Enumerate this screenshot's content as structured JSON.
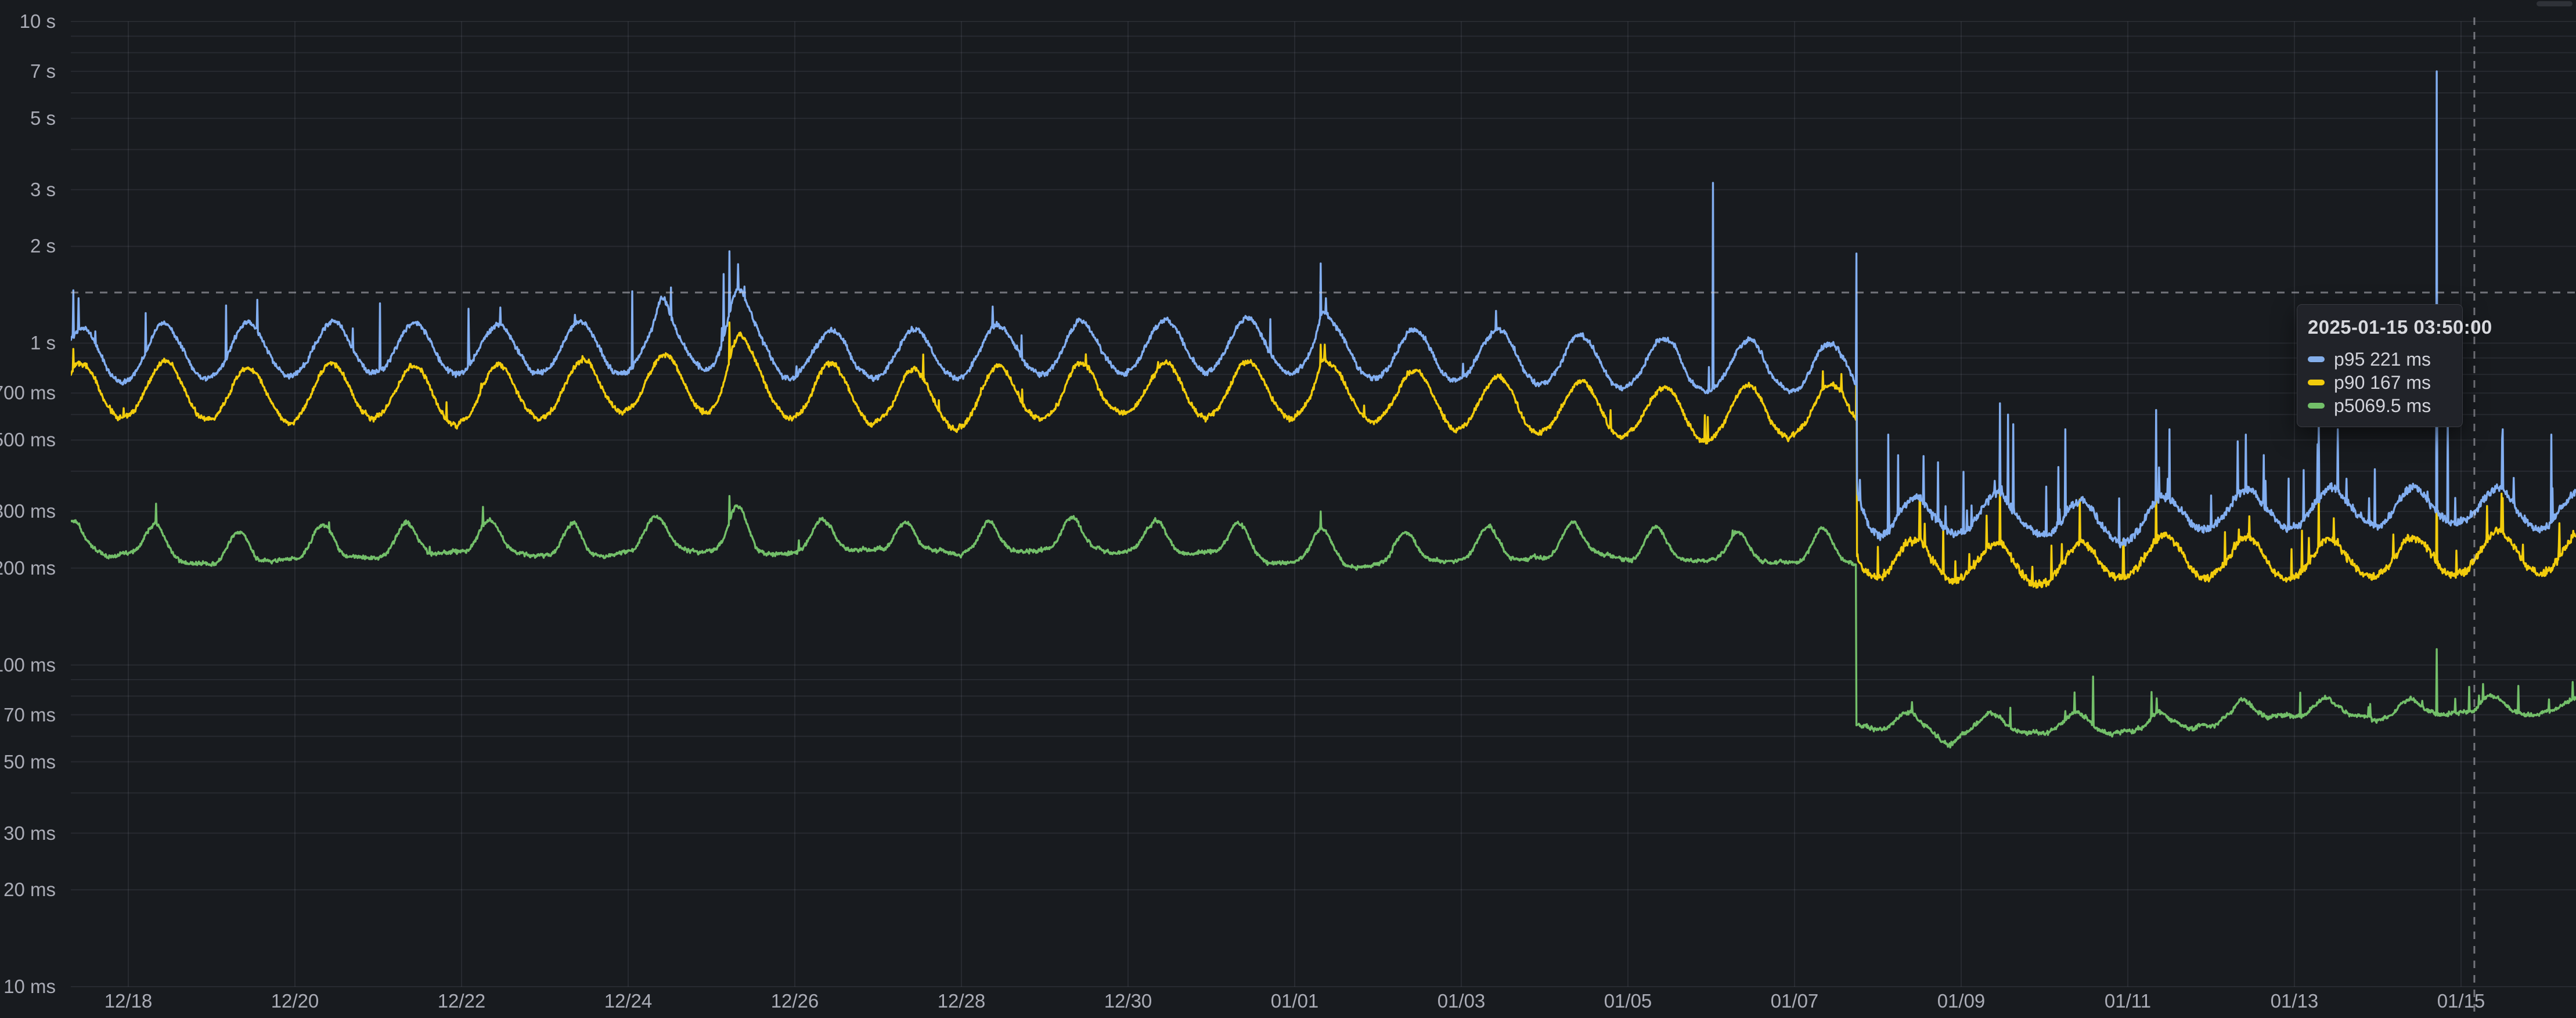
{
  "page": {
    "background": "#181b1f",
    "grid_color": "rgba(204,204,220,0.09)",
    "axis_text_color": "rgba(208,209,220,0.80)"
  },
  "tooltip": {
    "title": "2025-01-15 03:50:00",
    "rows": [
      {
        "label": "p95",
        "value": "221 ms",
        "color": "#84AEEA"
      },
      {
        "label": "p90",
        "value": "167 ms",
        "color": "#F2CC0C"
      },
      {
        "label": "p50",
        "value": "69.5 ms",
        "color": "#73BF69"
      }
    ]
  },
  "chart_data": {
    "type": "line",
    "title": "",
    "xlabel": "",
    "ylabel": "",
    "y_unit": "ms",
    "y_scale": "log10",
    "y_range_ms": [
      10,
      10000
    ],
    "grid": true,
    "legend_position": "tooltip-only",
    "x_start": "2024-12-17T07:00:00Z",
    "x_end": "2025-01-16T09:00:00Z",
    "sample_minutes": 10,
    "change_point": "2025-01-07T17:45:00Z",
    "crosshair": {
      "time": "2025-01-15T03:50:00Z",
      "value_ms": 1437
    },
    "y_ticks": [
      {
        "ms": 10000,
        "label": "10 s"
      },
      {
        "ms": 7000,
        "label": "7 s"
      },
      {
        "ms": 5000,
        "label": "5 s"
      },
      {
        "ms": 3000,
        "label": "3 s"
      },
      {
        "ms": 2000,
        "label": "2 s"
      },
      {
        "ms": 1000,
        "label": "1 s"
      },
      {
        "ms": 700,
        "label": "700 ms"
      },
      {
        "ms": 500,
        "label": "500 ms"
      },
      {
        "ms": 300,
        "label": "300 ms"
      },
      {
        "ms": 200,
        "label": "200 ms"
      },
      {
        "ms": 100,
        "label": "100 ms"
      },
      {
        "ms": 70,
        "label": "70 ms"
      },
      {
        "ms": 50,
        "label": "50 ms"
      },
      {
        "ms": 30,
        "label": "30 ms"
      },
      {
        "ms": 20,
        "label": "20 ms"
      },
      {
        "ms": 10,
        "label": "10 ms"
      }
    ],
    "x_ticks": [
      {
        "label": "12/18",
        "date": "2024-12-18"
      },
      {
        "label": "12/20",
        "date": "2024-12-20"
      },
      {
        "label": "12/22",
        "date": "2024-12-22"
      },
      {
        "label": "12/24",
        "date": "2024-12-24"
      },
      {
        "label": "12/26",
        "date": "2024-12-26"
      },
      {
        "label": "12/28",
        "date": "2024-12-28"
      },
      {
        "label": "12/30",
        "date": "2024-12-30"
      },
      {
        "label": "01/01",
        "date": "2025-01-01"
      },
      {
        "label": "01/03",
        "date": "2025-01-03"
      },
      {
        "label": "01/05",
        "date": "2025-01-05"
      },
      {
        "label": "01/07",
        "date": "2025-01-07"
      },
      {
        "label": "01/09",
        "date": "2025-01-09"
      },
      {
        "label": "01/11",
        "date": "2025-01-11"
      },
      {
        "label": "01/13",
        "date": "2025-01-13"
      },
      {
        "label": "01/15",
        "date": "2025-01-15"
      }
    ],
    "series": [
      {
        "name": "p95",
        "color": "#82AEF0",
        "seed": 101,
        "daily_base_pre_ms": [
          905,
          895,
          890,
          900,
          905,
          900,
          915,
          940,
          930,
          900,
          885,
          880,
          890,
          900,
          900,
          885,
          865,
          860,
          850,
          835,
          820,
          830
        ],
        "daily_base_post_ms": [
          292,
          298,
          294,
          299,
          305,
          300,
          306,
          312,
          312
        ],
        "daily_pre": {
          "trough": 0.845,
          "peak": 1.245,
          "peak_hour": 10.5,
          "sigma_h": 4.5
        },
        "daily_post": {
          "trough": 0.86,
          "peak": 1.17,
          "peak_hour": 10.5,
          "sigma_h": 4.5
        },
        "noise_pre": {
          "jitter": 0.022,
          "spike_prob": 0.008,
          "spike_mag": 0.3
        },
        "noise_post": {
          "jitter": 0.035,
          "spike_prob": 0.03,
          "spike_mag": 0.55
        },
        "settle": {
          "amp": 0.38,
          "tau_h": 3
        },
        "surges": [
          {
            "time": "2024-12-25T07:00:00Z",
            "sigma_h": 2.5,
            "factor": 1.35
          },
          {
            "time": "2024-12-24T10:00:00Z",
            "sigma_h": 1.5,
            "factor": 1.15
          },
          {
            "time": "2025-01-01T08:00:00Z",
            "sigma_h": 1.2,
            "factor": 1.12
          }
        ],
        "spikes": [
          {
            "time": "2024-12-17T08:10:00Z",
            "value_ms": 1460
          },
          {
            "time": "2024-12-17T09:40:00Z",
            "value_ms": 1380
          },
          {
            "time": "2024-12-18T05:00:00Z",
            "value_ms": 1240
          },
          {
            "time": "2024-12-19T04:10:00Z",
            "value_ms": 1310
          },
          {
            "time": "2024-12-21T00:30:00Z",
            "value_ms": 1330
          },
          {
            "time": "2024-12-22T02:00:00Z",
            "value_ms": 1280
          },
          {
            "time": "2024-12-24T01:10:00Z",
            "value_ms": 1450
          },
          {
            "time": "2024-12-25T03:30:00Z",
            "value_ms": 1640
          },
          {
            "time": "2024-12-25T05:10:00Z",
            "value_ms": 1930
          },
          {
            "time": "2024-12-25T07:40:00Z",
            "value_ms": 1760
          },
          {
            "time": "2024-12-25T09:30:00Z",
            "value_ms": 1500
          },
          {
            "time": "2024-12-28T09:00:00Z",
            "value_ms": 1300
          },
          {
            "time": "2025-01-01T07:30:00Z",
            "value_ms": 1770
          },
          {
            "time": "2025-01-01T09:00:00Z",
            "value_ms": 1380
          },
          {
            "time": "2025-01-03T10:00:00Z",
            "value_ms": 1260
          },
          {
            "time": "2025-01-06T00:30:00Z",
            "value_ms": 3150
          },
          {
            "time": "2025-01-07T17:45:00Z",
            "value_ms": 1900
          },
          {
            "time": "2025-01-08T03:00:00Z",
            "value_ms": 520
          },
          {
            "time": "2025-01-09T11:10:00Z",
            "value_ms": 650
          },
          {
            "time": "2025-01-09T13:30:00Z",
            "value_ms": 600
          },
          {
            "time": "2025-01-09T15:00:00Z",
            "value_ms": 560
          },
          {
            "time": "2025-01-10T06:00:00Z",
            "value_ms": 540
          },
          {
            "time": "2025-01-11T08:10:00Z",
            "value_ms": 620
          },
          {
            "time": "2025-01-11T12:00:00Z",
            "value_ms": 540
          },
          {
            "time": "2025-01-12T10:00:00Z",
            "value_ms": 520
          },
          {
            "time": "2025-01-13T07:00:00Z",
            "value_ms": 590
          },
          {
            "time": "2025-01-13T12:30:00Z",
            "value_ms": 540
          },
          {
            "time": "2025-01-14T17:00:00Z",
            "value_ms": 7000
          },
          {
            "time": "2025-01-14T20:10:00Z",
            "value_ms": 620
          },
          {
            "time": "2025-01-15T12:00:00Z",
            "value_ms": 540
          },
          {
            "time": "2025-01-16T02:00:00Z",
            "value_ms": 520
          }
        ]
      },
      {
        "name": "p90",
        "color": "#F2CC0C",
        "seed": 202,
        "daily_base_pre_ms": [
          700,
          690,
          685,
          695,
          705,
          700,
          715,
          745,
          735,
          700,
          685,
          680,
          690,
          700,
          700,
          680,
          655,
          645,
          635,
          615,
          600,
          615
        ],
        "daily_base_post_ms": [
          207,
          210,
          206,
          210,
          216,
          212,
          216,
          221,
          221
        ],
        "daily_pre": {
          "trough": 0.825,
          "peak": 1.25,
          "peak_hour": 10.5,
          "sigma_h": 4.5
        },
        "daily_post": {
          "trough": 0.86,
          "peak": 1.17,
          "peak_hour": 10.5,
          "sigma_h": 4.5
        },
        "noise_pre": {
          "jitter": 0.022,
          "spike_prob": 0.008,
          "spike_mag": 0.25
        },
        "noise_post": {
          "jitter": 0.035,
          "spike_prob": 0.028,
          "spike_mag": 0.4
        },
        "settle": {
          "amp": 0.13,
          "tau_h": 3
        },
        "surges": [
          {
            "time": "2024-12-25T07:00:00Z",
            "sigma_h": 2.5,
            "factor": 1.25
          },
          {
            "time": "2025-01-01T08:00:00Z",
            "sigma_h": 1.2,
            "factor": 1.1
          }
        ],
        "spikes": [
          {
            "time": "2024-12-17T08:10:00Z",
            "value_ms": 960
          },
          {
            "time": "2024-12-25T05:10:00Z",
            "value_ms": 1160
          },
          {
            "time": "2024-12-25T07:40:00Z",
            "value_ms": 1060
          },
          {
            "time": "2025-01-01T07:30:00Z",
            "value_ms": 990
          },
          {
            "time": "2025-01-07T17:45:00Z",
            "value_ms": 1020
          },
          {
            "time": "2025-01-09T11:10:00Z",
            "value_ms": 390
          },
          {
            "time": "2025-01-11T08:10:00Z",
            "value_ms": 360
          },
          {
            "time": "2025-01-13T07:00:00Z",
            "value_ms": 340
          },
          {
            "time": "2025-01-14T17:00:00Z",
            "value_ms": 460
          },
          {
            "time": "2025-01-15T12:00:00Z",
            "value_ms": 330
          }
        ]
      },
      {
        "name": "p50",
        "color": "#73BF69",
        "seed": 303,
        "daily_base_pre_ms": [
          232,
          230,
          229,
          231,
          233,
          231,
          234,
          240,
          237,
          233,
          230,
          229,
          231,
          233,
          233,
          229,
          226,
          224,
          222,
          219,
          217,
          220
        ],
        "daily_base_post_ms": [
          70.5,
          70,
          69.5,
          70,
          71,
          70.5,
          71,
          72,
          72
        ],
        "daily_pre": {
          "trough": 0.965,
          "peak": 1.22,
          "peak_hour": 8.0,
          "sigma_h": 2.8
        },
        "daily_post": {
          "trough": 0.955,
          "peak": 1.075,
          "peak_hour": 9.0,
          "sigma_h": 3.0
        },
        "noise_pre": {
          "jitter": 0.016,
          "spike_prob": 0.004,
          "spike_mag": 0.18
        },
        "noise_post": {
          "jitter": 0.018,
          "spike_prob": 0.01,
          "spike_mag": 0.22
        },
        "settle": {
          "amp": 0.02,
          "tau_h": 2
        },
        "surges": [
          {
            "time": "2024-12-25T07:00:00Z",
            "sigma_h": 2.0,
            "factor": 1.12
          },
          {
            "time": "2025-01-08T20:00:00Z",
            "sigma_h": 3.0,
            "factor": 0.9
          }
        ],
        "spikes": [
          {
            "time": "2024-12-22T06:10:00Z",
            "value_ms": 310
          },
          {
            "time": "2024-12-25T05:10:00Z",
            "value_ms": 335
          },
          {
            "time": "2025-01-01T07:30:00Z",
            "value_ms": 300
          },
          {
            "time": "2025-01-10T14:00:00Z",
            "value_ms": 92
          },
          {
            "time": "2025-01-14T17:00:00Z",
            "value_ms": 112
          }
        ]
      }
    ]
  }
}
